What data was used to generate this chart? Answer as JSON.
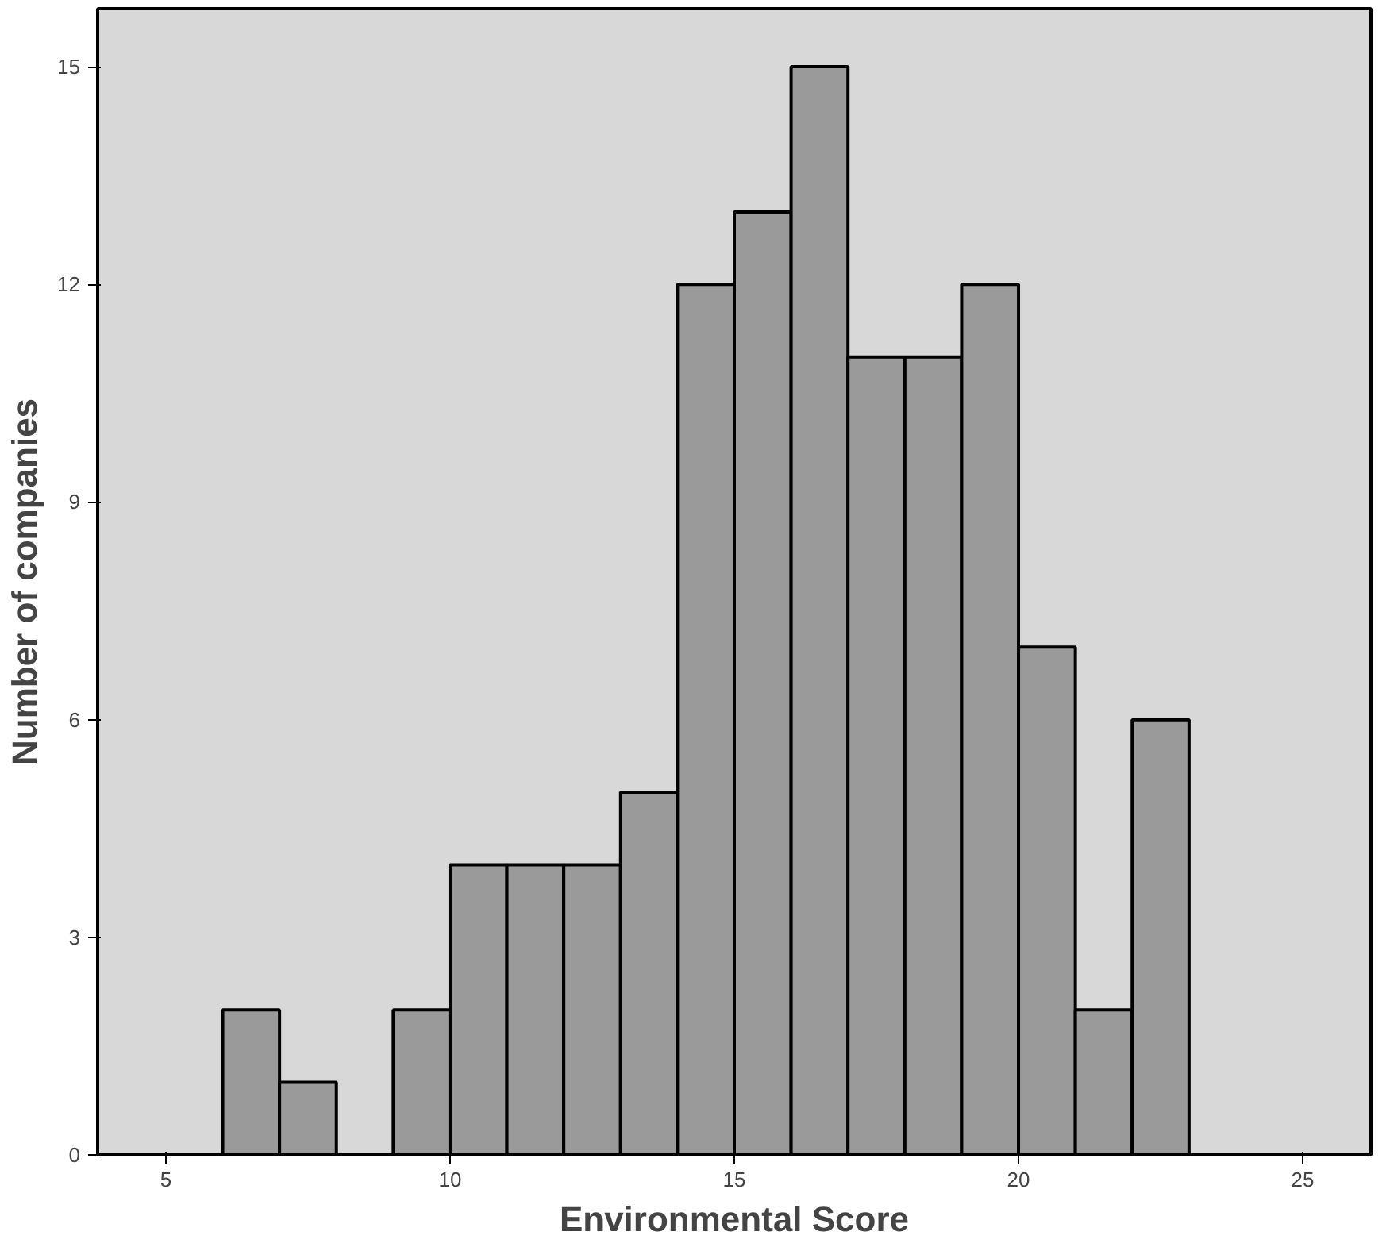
{
  "chart_data": {
    "type": "histogram",
    "xlabel": "Environmental Score",
    "ylabel": "Number of companies",
    "bins": [
      6,
      7,
      8,
      9,
      10,
      11,
      12,
      13,
      14,
      15,
      16,
      17,
      18,
      19,
      20,
      21,
      22,
      23
    ],
    "values": [
      2,
      1,
      0,
      2,
      4,
      4,
      4,
      5,
      12,
      13,
      15,
      11,
      11,
      12,
      7,
      2,
      6
    ],
    "color": "#9a9a9a",
    "xlim": [
      3.8,
      26.2
    ],
    "ylim": [
      0,
      15.8
    ],
    "xticks": [
      5,
      10,
      15,
      20,
      25
    ],
    "yticks": [
      0,
      3,
      6,
      9,
      12,
      15
    ],
    "grid": false
  }
}
